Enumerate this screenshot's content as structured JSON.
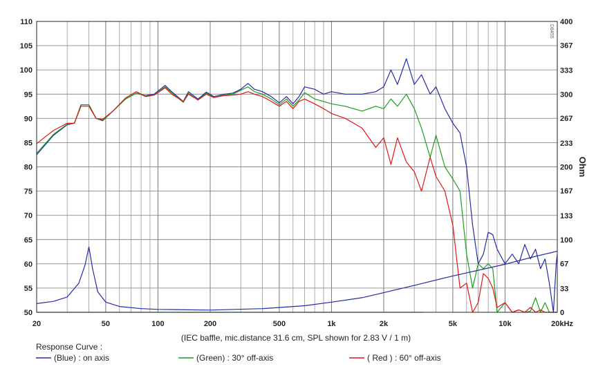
{
  "chart_data": {
    "type": "line",
    "caption": "(IEC baffle, mic.distance 31.6 cm, SPL shown for 2.83 V / 1 m)",
    "watermark": "D8455",
    "x_axis": {
      "scale": "log",
      "range": [
        20,
        20000
      ],
      "tick_labels": [
        {
          "value": 20,
          "label": "20"
        },
        {
          "value": 50,
          "label": "50"
        },
        {
          "value": 100,
          "label": "100"
        },
        {
          "value": 200,
          "label": "200"
        },
        {
          "value": 500,
          "label": "500"
        },
        {
          "value": 1000,
          "label": "1k"
        },
        {
          "value": 2000,
          "label": "2k"
        },
        {
          "value": 5000,
          "label": "5k"
        },
        {
          "value": 10000,
          "label": "10k"
        },
        {
          "value": 20000,
          "label": "20kHz"
        }
      ]
    },
    "y_left": {
      "range": [
        50,
        110
      ],
      "ticks": [
        "50",
        "55",
        "60",
        "65",
        "70",
        "75",
        "80",
        "85",
        "90",
        "95",
        "100",
        "105",
        "110"
      ]
    },
    "y_right": {
      "label": "Ohm",
      "range": [
        0,
        400
      ],
      "ticks": [
        "0",
        "33",
        "67",
        "100",
        "133",
        "167",
        "200",
        "233",
        "267",
        "300",
        "333",
        "367",
        "400"
      ]
    },
    "grid": true,
    "legend": {
      "title": "Response Curve :",
      "placement": "bottom",
      "items": [
        {
          "label": "(Blue)  : on axis",
          "color": "#1f2aa8"
        },
        {
          "label": "(Green) : 30° off-axis",
          "color": "#1a9e1a"
        },
        {
          "label": "( Red ) : 60° off-axis",
          "color": "#e01515"
        }
      ]
    },
    "series": [
      {
        "color": "#1f2aa8",
        "axis": "left",
        "points": [
          [
            20,
            82.5
          ],
          [
            25,
            86.5
          ],
          [
            30,
            88.7
          ],
          [
            33,
            89
          ],
          [
            36,
            92.8
          ],
          [
            40,
            92.8
          ],
          [
            44,
            90
          ],
          [
            48,
            89.5
          ],
          [
            55,
            91.5
          ],
          [
            65,
            94
          ],
          [
            75,
            95.2
          ],
          [
            85,
            94.7
          ],
          [
            95,
            95
          ],
          [
            110,
            96.8
          ],
          [
            120,
            95.5
          ],
          [
            140,
            93.5
          ],
          [
            150,
            95.5
          ],
          [
            170,
            94
          ],
          [
            190,
            95.4
          ],
          [
            210,
            94.5
          ],
          [
            240,
            95
          ],
          [
            270,
            95.2
          ],
          [
            300,
            96
          ],
          [
            330,
            97.2
          ],
          [
            360,
            96
          ],
          [
            400,
            95.5
          ],
          [
            450,
            94.5
          ],
          [
            500,
            93.2
          ],
          [
            550,
            94.5
          ],
          [
            600,
            93
          ],
          [
            650,
            94.5
          ],
          [
            700,
            96.5
          ],
          [
            800,
            96
          ],
          [
            900,
            95
          ],
          [
            1000,
            95.5
          ],
          [
            1200,
            95
          ],
          [
            1500,
            95
          ],
          [
            1800,
            95.5
          ],
          [
            2000,
            96.5
          ],
          [
            2200,
            100
          ],
          [
            2400,
            97
          ],
          [
            2700,
            102.3
          ],
          [
            3000,
            97
          ],
          [
            3300,
            99
          ],
          [
            3700,
            95
          ],
          [
            4000,
            96.5
          ],
          [
            4500,
            92
          ],
          [
            5000,
            89
          ],
          [
            5500,
            87
          ],
          [
            6000,
            80
          ],
          [
            6500,
            68
          ],
          [
            7000,
            60
          ],
          [
            7500,
            62
          ],
          [
            8000,
            66.5
          ],
          [
            8500,
            66
          ],
          [
            9000,
            63
          ],
          [
            10000,
            60
          ],
          [
            11000,
            62
          ],
          [
            12000,
            60
          ],
          [
            13000,
            64
          ],
          [
            14000,
            61
          ],
          [
            15000,
            63
          ],
          [
            16000,
            59
          ],
          [
            17000,
            61
          ],
          [
            18000,
            56
          ],
          [
            19000,
            50
          ],
          [
            19700,
            60
          ],
          [
            20000,
            62
          ]
        ]
      },
      {
        "color": "#1a9e1a",
        "axis": "left",
        "points": [
          [
            20,
            82.8
          ],
          [
            25,
            86.7
          ],
          [
            30,
            88.8
          ],
          [
            33,
            89
          ],
          [
            36,
            92.8
          ],
          [
            40,
            92.8
          ],
          [
            44,
            90
          ],
          [
            48,
            89.6
          ],
          [
            55,
            91.5
          ],
          [
            65,
            94
          ],
          [
            75,
            95.2
          ],
          [
            85,
            94.6
          ],
          [
            95,
            94.8
          ],
          [
            110,
            96.5
          ],
          [
            120,
            95.3
          ],
          [
            140,
            93.3
          ],
          [
            150,
            95.2
          ],
          [
            170,
            93.8
          ],
          [
            190,
            95.2
          ],
          [
            210,
            94.3
          ],
          [
            240,
            94.8
          ],
          [
            270,
            95
          ],
          [
            300,
            95.8
          ],
          [
            330,
            96.5
          ],
          [
            360,
            95.5
          ],
          [
            400,
            95
          ],
          [
            450,
            94
          ],
          [
            500,
            92.8
          ],
          [
            550,
            94
          ],
          [
            600,
            92.5
          ],
          [
            650,
            93.8
          ],
          [
            700,
            95.3
          ],
          [
            800,
            94
          ],
          [
            900,
            93.5
          ],
          [
            1000,
            93
          ],
          [
            1200,
            92.5
          ],
          [
            1500,
            91.5
          ],
          [
            1800,
            92.5
          ],
          [
            2000,
            92
          ],
          [
            2200,
            94
          ],
          [
            2400,
            92.5
          ],
          [
            2700,
            95
          ],
          [
            3000,
            92
          ],
          [
            3300,
            88
          ],
          [
            3700,
            82
          ],
          [
            4000,
            86.5
          ],
          [
            4500,
            80
          ],
          [
            5000,
            77.5
          ],
          [
            5500,
            75
          ],
          [
            6000,
            62
          ],
          [
            6500,
            55
          ],
          [
            7000,
            60
          ],
          [
            7500,
            59
          ],
          [
            8000,
            60
          ],
          [
            8500,
            59
          ],
          [
            9000,
            50
          ],
          [
            10000,
            52
          ],
          [
            11000,
            50
          ],
          [
            12000,
            50.5
          ],
          [
            13000,
            50
          ],
          [
            14000,
            50.2
          ],
          [
            15000,
            53
          ],
          [
            16000,
            50
          ],
          [
            17000,
            52
          ],
          [
            18000,
            50
          ],
          [
            19000,
            50
          ],
          [
            20000,
            50
          ]
        ]
      },
      {
        "color": "#e01515",
        "axis": "left",
        "points": [
          [
            20,
            84.8
          ],
          [
            25,
            87.5
          ],
          [
            30,
            89
          ],
          [
            33,
            89
          ],
          [
            36,
            92.5
          ],
          [
            40,
            92.5
          ],
          [
            44,
            90
          ],
          [
            48,
            89.8
          ],
          [
            55,
            91.5
          ],
          [
            65,
            94.2
          ],
          [
            75,
            95.5
          ],
          [
            85,
            94.5
          ],
          [
            95,
            94.8
          ],
          [
            110,
            96.3
          ],
          [
            120,
            95
          ],
          [
            140,
            93.5
          ],
          [
            150,
            95
          ],
          [
            170,
            93.8
          ],
          [
            190,
            95
          ],
          [
            210,
            94.3
          ],
          [
            240,
            94.7
          ],
          [
            270,
            94.8
          ],
          [
            300,
            95
          ],
          [
            330,
            95.5
          ],
          [
            360,
            95
          ],
          [
            400,
            94.5
          ],
          [
            450,
            93.5
          ],
          [
            500,
            92.5
          ],
          [
            550,
            93.5
          ],
          [
            600,
            92
          ],
          [
            650,
            93.5
          ],
          [
            700,
            94
          ],
          [
            800,
            93
          ],
          [
            900,
            92
          ],
          [
            1000,
            91
          ],
          [
            1200,
            90
          ],
          [
            1500,
            88
          ],
          [
            1800,
            84
          ],
          [
            2000,
            86
          ],
          [
            2200,
            80.5
          ],
          [
            2400,
            86
          ],
          [
            2700,
            81
          ],
          [
            3000,
            79
          ],
          [
            3300,
            75
          ],
          [
            3700,
            82
          ],
          [
            4000,
            78
          ],
          [
            4500,
            75
          ],
          [
            5000,
            68
          ],
          [
            5500,
            55
          ],
          [
            6000,
            56
          ],
          [
            6500,
            50
          ],
          [
            7000,
            52
          ],
          [
            7500,
            58
          ],
          [
            8000,
            57
          ],
          [
            8500,
            55
          ],
          [
            9000,
            51
          ],
          [
            10000,
            52
          ],
          [
            11000,
            50
          ],
          [
            12000,
            50.5
          ],
          [
            13000,
            50
          ],
          [
            14000,
            51
          ],
          [
            15000,
            50
          ],
          [
            16000,
            50.5
          ],
          [
            17000,
            50
          ],
          [
            18000,
            50
          ],
          [
            19000,
            50
          ],
          [
            20000,
            50
          ]
        ]
      },
      {
        "color": "#1f2aa8",
        "axis": "right",
        "points": [
          [
            20,
            12
          ],
          [
            25,
            15
          ],
          [
            30,
            21
          ],
          [
            35,
            40
          ],
          [
            38,
            65
          ],
          [
            40,
            90
          ],
          [
            42,
            60
          ],
          [
            45,
            28
          ],
          [
            50,
            14
          ],
          [
            60,
            8
          ],
          [
            80,
            5
          ],
          [
            100,
            4
          ],
          [
            200,
            3
          ],
          [
            400,
            5
          ],
          [
            700,
            9
          ],
          [
            1000,
            14
          ],
          [
            1500,
            20
          ],
          [
            2000,
            27
          ],
          [
            3000,
            37
          ],
          [
            5000,
            50
          ],
          [
            10000,
            66
          ],
          [
            15000,
            77
          ],
          [
            20000,
            84
          ]
        ]
      },
      {
        "color": "#1a9e1a",
        "axis": "right",
        "points": [
          [
            20,
            0
          ],
          [
            3400,
            0
          ]
        ]
      }
    ]
  }
}
